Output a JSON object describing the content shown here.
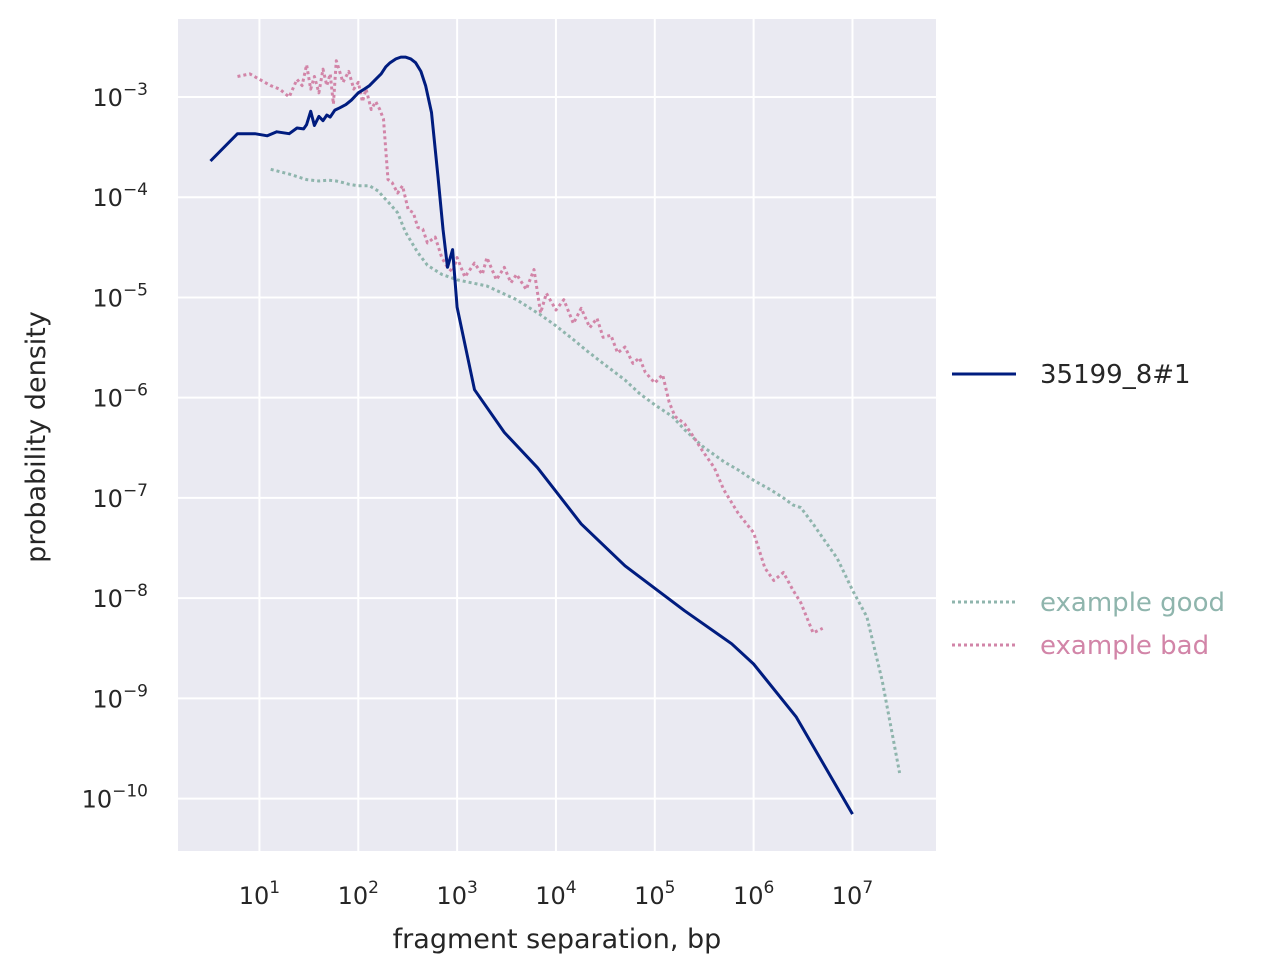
{
  "chart_data": {
    "type": "line",
    "title": "",
    "xlabel": "fragment separation, bp",
    "ylabel": "probability density",
    "x_scale": "log",
    "y_scale": "log",
    "xlim": [
      1.5,
      70000000
    ],
    "ylim": [
      3e-11,
      0.006
    ],
    "grid": true,
    "x_ticks": [
      {
        "value": 10,
        "base": "10",
        "exp": "1"
      },
      {
        "value": 100,
        "base": "10",
        "exp": "2"
      },
      {
        "value": 1000,
        "base": "10",
        "exp": "3"
      },
      {
        "value": 10000,
        "base": "10",
        "exp": "4"
      },
      {
        "value": 100000,
        "base": "10",
        "exp": "5"
      },
      {
        "value": 1000000,
        "base": "10",
        "exp": "6"
      },
      {
        "value": 10000000,
        "base": "10",
        "exp": "7"
      }
    ],
    "y_ticks": [
      {
        "value": 0.001,
        "base": "10",
        "exp": "−3"
      },
      {
        "value": 0.0001,
        "base": "10",
        "exp": "−4"
      },
      {
        "value": 1e-05,
        "base": "10",
        "exp": "−5"
      },
      {
        "value": 1e-06,
        "base": "10",
        "exp": "−6"
      },
      {
        "value": 1e-07,
        "base": "10",
        "exp": "−7"
      },
      {
        "value": 1e-08,
        "base": "10",
        "exp": "−8"
      },
      {
        "value": 1e-09,
        "base": "10",
        "exp": "−9"
      },
      {
        "value": 1e-10,
        "base": "10",
        "exp": "−10"
      }
    ],
    "legend_placement": "right",
    "series": [
      {
        "name": "35199_8#1",
        "color": "#001c7f",
        "style": "solid",
        "x": [
          3.2,
          6,
          9,
          12,
          15,
          20,
          24,
          28,
          30,
          33,
          36,
          40,
          44,
          48,
          52,
          58,
          65,
          75,
          85,
          100,
          115,
          130,
          150,
          170,
          190,
          210,
          240,
          270,
          300,
          340,
          380,
          430,
          480,
          550,
          640,
          720,
          800,
          900,
          1000,
          1500,
          3000,
          6500,
          18000,
          50000,
          200000,
          600000,
          1000000,
          2700000,
          10000000
        ],
        "y": [
          0.00023,
          0.00043,
          0.00043,
          0.00041,
          0.00045,
          0.00043,
          0.00049,
          0.00048,
          0.00053,
          0.00072,
          0.00052,
          0.00064,
          0.00058,
          0.00066,
          0.00063,
          0.00074,
          0.00078,
          0.00084,
          0.00093,
          0.0011,
          0.0012,
          0.0013,
          0.0015,
          0.0017,
          0.002,
          0.0022,
          0.0024,
          0.0025,
          0.0025,
          0.0024,
          0.0022,
          0.0018,
          0.0013,
          0.0007,
          0.00016,
          4.8e-05,
          2e-05,
          3e-05,
          8e-06,
          1.2e-06,
          4.5e-07,
          2e-07,
          5.5e-08,
          2.1e-08,
          7.5e-09,
          3.5e-09,
          2.2e-09,
          6.5e-10,
          7e-11
        ]
      },
      {
        "name": "example good",
        "color": "#8fb5ad",
        "style": "dotted",
        "x": [
          13,
          20,
          30,
          40,
          50,
          60,
          70,
          80,
          100,
          130,
          160,
          180,
          200,
          250,
          300,
          400,
          500,
          700,
          1000,
          2000,
          4000,
          7000,
          10000,
          15000,
          20000,
          30000,
          50000,
          70000,
          100000,
          150000,
          200000,
          300000,
          500000,
          700000,
          1000000,
          1500000,
          2000000,
          2500000,
          3000000,
          4000000,
          5000000,
          7000000,
          10000000,
          14000000,
          20000000,
          30000000
        ],
        "y": [
          0.00019,
          0.00017,
          0.00015,
          0.000145,
          0.000148,
          0.000145,
          0.00014,
          0.000135,
          0.00013,
          0.00013,
          0.000115,
          0.0001,
          9e-05,
          7e-05,
          4.5e-05,
          2.8e-05,
          2.1e-05,
          1.7e-05,
          1.5e-05,
          1.3e-05,
          9.5e-06,
          6.7e-06,
          5.2e-06,
          3.8e-06,
          3e-06,
          2.2e-06,
          1.5e-06,
          1.1e-06,
          8.5e-07,
          6.5e-07,
          4.8e-07,
          3.3e-07,
          2.3e-07,
          1.9e-07,
          1.5e-07,
          1.2e-07,
          1e-07,
          8.5e-08,
          8e-08,
          5.5e-08,
          4e-08,
          2.5e-08,
          1.2e-08,
          6.5e-09,
          1.5e-09,
          1.8e-10
        ]
      },
      {
        "name": "example bad",
        "color": "#d285a8",
        "style": "dotted",
        "x": [
          6,
          8,
          10,
          13,
          16,
          20,
          24,
          27,
          30,
          33,
          36,
          40,
          44,
          48,
          52,
          56,
          60,
          70,
          80,
          90,
          100,
          110,
          120,
          135,
          150,
          165,
          180,
          200,
          220,
          250,
          280,
          320,
          360,
          400,
          450,
          500,
          600,
          700,
          800,
          900,
          1000,
          1200,
          1500,
          1800,
          2000,
          2500,
          3000,
          3500,
          4000,
          5000,
          6000,
          7000,
          8000,
          10000,
          12000,
          15000,
          18000,
          22000,
          26000,
          30000,
          36000,
          42000,
          50000,
          60000,
          70000,
          80000,
          100000,
          120000,
          140000,
          160000,
          200000,
          250000,
          300000,
          400000,
          500000,
          700000,
          1000000,
          1300000,
          1600000,
          2000000,
          2500000,
          3000000,
          4000000,
          5000000
        ],
        "y": [
          0.0016,
          0.0017,
          0.0015,
          0.0013,
          0.0012,
          0.001,
          0.0015,
          0.0013,
          0.0021,
          0.0012,
          0.0016,
          0.0011,
          0.0019,
          0.0013,
          0.0017,
          0.00085,
          0.0023,
          0.0014,
          0.0018,
          0.0012,
          0.0014,
          0.0009,
          0.0012,
          0.00075,
          0.0009,
          0.00075,
          0.0006,
          0.00015,
          0.00014,
          0.00011,
          0.00013,
          7.5e-05,
          7e-05,
          5e-05,
          4.8e-05,
          3.5e-05,
          4e-05,
          2.5e-05,
          2e-05,
          1.8e-05,
          2.5e-05,
          1.6e-05,
          2.2e-05,
          1.7e-05,
          2.5e-05,
          1.5e-05,
          2e-05,
          1.4e-05,
          1.7e-05,
          1.2e-05,
          1.9e-05,
          7e-06,
          1.1e-05,
          7.5e-06,
          9.5e-06,
          5.5e-06,
          7.8e-06,
          5e-06,
          6.2e-06,
          4e-06,
          4.2e-06,
          2.8e-06,
          3.2e-06,
          2.2e-06,
          2.5e-06,
          1.8e-06,
          1.4e-06,
          1.7e-06,
          9e-07,
          6.5e-07,
          5.5e-07,
          4e-07,
          3e-07,
          2e-07,
          1.2e-07,
          7e-08,
          4.5e-08,
          2e-08,
          1.5e-08,
          1.8e-08,
          1.2e-08,
          9e-09,
          4.5e-09,
          5e-09
        ]
      }
    ]
  }
}
